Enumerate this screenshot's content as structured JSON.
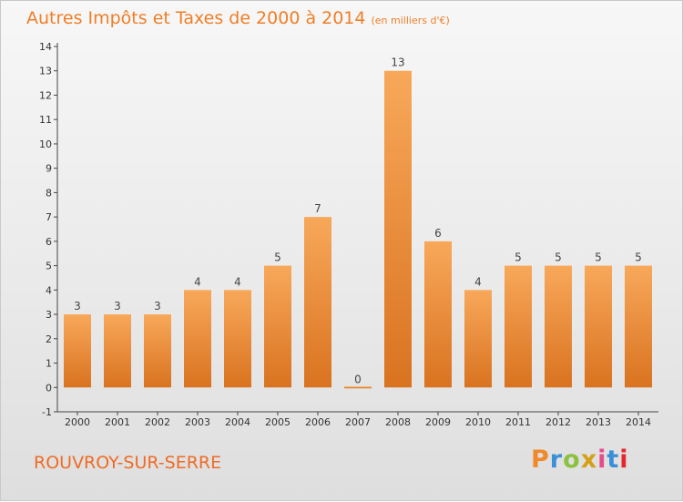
{
  "header": {
    "title": "Autres Impôts et Taxes de 2000 à 2014",
    "subtitle": "(en milliers d'€)"
  },
  "footer": {
    "commune": "ROUVROY-SUR-SERRE",
    "logo": "Proxiti"
  },
  "colors": {
    "title": "#f07e26",
    "bar_light": "#f8a85a",
    "bar_dark": "#d97320",
    "axis": "#444444",
    "logo_letters": [
      "#f0892c",
      "#3a8fd6",
      "#8cc13f",
      "#d4a017",
      "#e64b8a",
      "#3a8fd6",
      "#e5262b"
    ]
  },
  "chart_data": {
    "type": "bar",
    "title": "Autres Impôts et Taxes de 2000 à 2014",
    "subtitle": "(en milliers d'€)",
    "categories": [
      "2000",
      "2001",
      "2002",
      "2003",
      "2004",
      "2005",
      "2006",
      "2007",
      "2008",
      "2009",
      "2010",
      "2011",
      "2012",
      "2013",
      "2014"
    ],
    "values": [
      3,
      3,
      3,
      4,
      4,
      5,
      7,
      0,
      13,
      6,
      4,
      5,
      5,
      5,
      5
    ],
    "data_labels": [
      "3",
      "3",
      "3",
      "4",
      "4",
      "5",
      "7",
      "0",
      "13",
      "6",
      "4",
      "5",
      "5",
      "5",
      "5"
    ],
    "ylim": [
      -1,
      14
    ],
    "y_ticks": [
      -1,
      0,
      1,
      2,
      3,
      4,
      5,
      6,
      7,
      8,
      9,
      10,
      11,
      12,
      13,
      14
    ],
    "y_tick_labels": [
      "-1",
      "0",
      "1",
      "2",
      "3",
      "4",
      "5",
      "6",
      "7",
      "8",
      "9",
      "10",
      "11",
      "12",
      "13",
      "14"
    ],
    "xlabel": "",
    "ylabel": "",
    "grid": false,
    "legend": false
  }
}
